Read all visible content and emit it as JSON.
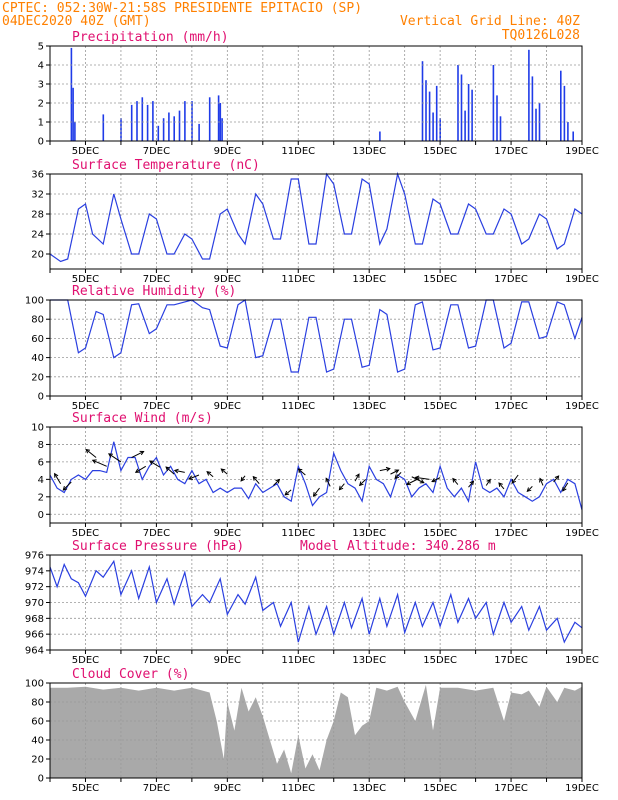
{
  "header": {
    "line1_left": "CPTEC:   052:30W-21:58S  PRESIDENTE EPITACIO (SP)",
    "line2_left": "04DEC2020 40Z (GMT)",
    "line2_right": "Vertical Grid Line: 40Z",
    "line3_right": "TQ0126L028",
    "model_altitude": "Model Altitude: 340.286 m"
  },
  "x_axis": {
    "start_day": 4,
    "end_day": 19,
    "tick_labels": [
      "5DEC",
      "7DEC",
      "9DEC",
      "11DEC",
      "13DEC",
      "15DEC",
      "17DEC",
      "19DEC"
    ]
  },
  "colors": {
    "line": "#2a3fe0",
    "bar": "#1f3be8",
    "cloud": "#a9a9a9",
    "grid": "#999999"
  },
  "chart_data": [
    {
      "id": "precip",
      "type": "bar",
      "title": "Precipitation (mm/h)",
      "ylim": [
        0,
        5
      ],
      "yticks": [
        0,
        1,
        2,
        3,
        4,
        5
      ],
      "x": [
        4.6,
        4.65,
        4.7,
        5.5,
        6.0,
        6.3,
        6.45,
        6.6,
        6.75,
        6.9,
        7.05,
        7.2,
        7.35,
        7.5,
        7.65,
        7.8,
        8.0,
        8.2,
        8.5,
        8.75,
        8.8,
        8.85,
        13.3,
        14.5,
        14.6,
        14.7,
        14.8,
        14.9,
        15.0,
        15.5,
        15.6,
        15.7,
        15.8,
        15.9,
        16.5,
        16.6,
        16.7,
        17.5,
        17.6,
        17.7,
        17.8,
        18.4,
        18.5,
        18.6,
        18.75
      ],
      "values": [
        4.9,
        2.8,
        1.0,
        1.4,
        1.2,
        1.9,
        2.1,
        2.3,
        1.9,
        2.1,
        0.8,
        1.2,
        1.5,
        1.3,
        1.6,
        2.1,
        2.1,
        0.9,
        2.3,
        2.4,
        2.0,
        1.2,
        0.5,
        4.2,
        3.2,
        2.6,
        1.5,
        2.9,
        1.2,
        4.0,
        3.5,
        1.6,
        3.0,
        2.7,
        4.0,
        2.4,
        1.3,
        4.8,
        3.4,
        1.7,
        2.0,
        3.7,
        2.9,
        1.0,
        0.5
      ]
    },
    {
      "id": "temp",
      "type": "line",
      "title": "Surface Temperature (nC)",
      "ylim": [
        17,
        36
      ],
      "yticks": [
        20,
        24,
        28,
        32,
        36
      ],
      "x": [
        4.0,
        4.3,
        4.5,
        4.8,
        5.0,
        5.2,
        5.5,
        5.8,
        6.0,
        6.3,
        6.5,
        6.8,
        7.0,
        7.3,
        7.5,
        7.8,
        8.0,
        8.3,
        8.5,
        8.8,
        9.0,
        9.3,
        9.5,
        9.8,
        10.0,
        10.3,
        10.5,
        10.8,
        11.0,
        11.3,
        11.5,
        11.8,
        12.0,
        12.3,
        12.5,
        12.8,
        13.0,
        13.3,
        13.5,
        13.8,
        14.0,
        14.3,
        14.5,
        14.8,
        15.0,
        15.3,
        15.5,
        15.8,
        16.0,
        16.3,
        16.5,
        16.8,
        17.0,
        17.3,
        17.5,
        17.8,
        18.0,
        18.3,
        18.5,
        18.8,
        19.0
      ],
      "values": [
        20,
        18.5,
        19,
        29,
        30,
        24,
        22,
        32,
        27,
        20,
        20,
        28,
        27,
        20,
        20,
        24,
        23,
        19,
        19,
        28,
        29,
        24,
        22,
        32,
        30,
        23,
        23,
        35,
        35,
        22,
        22,
        36,
        34,
        24,
        24,
        35,
        34,
        22,
        25,
        36,
        32,
        22,
        22,
        31,
        30,
        24,
        24,
        30,
        29,
        24,
        24,
        29,
        28,
        22,
        23,
        28,
        27,
        21,
        22,
        29,
        28
      ]
    },
    {
      "id": "rh",
      "type": "line",
      "title": "Relative Humidity (%)",
      "ylim": [
        0,
        100
      ],
      "yticks": [
        0,
        20,
        40,
        60,
        80,
        100
      ],
      "x": [
        4.0,
        4.3,
        4.5,
        4.8,
        5.0,
        5.3,
        5.5,
        5.8,
        6.0,
        6.3,
        6.5,
        6.8,
        7.0,
        7.3,
        7.5,
        7.8,
        8.0,
        8.3,
        8.5,
        8.8,
        9.0,
        9.3,
        9.5,
        9.8,
        10.0,
        10.3,
        10.5,
        10.8,
        11.0,
        11.3,
        11.5,
        11.8,
        12.0,
        12.3,
        12.5,
        12.8,
        13.0,
        13.3,
        13.5,
        13.8,
        14.0,
        14.3,
        14.5,
        14.8,
        15.0,
        15.3,
        15.5,
        15.8,
        16.0,
        16.3,
        16.5,
        16.8,
        17.0,
        17.3,
        17.5,
        17.8,
        18.0,
        18.3,
        18.5,
        18.8,
        19.0
      ],
      "values": [
        100,
        100,
        100,
        45,
        50,
        88,
        85,
        40,
        45,
        95,
        96,
        65,
        70,
        95,
        95,
        98,
        100,
        92,
        90,
        52,
        50,
        95,
        100,
        40,
        42,
        80,
        80,
        25,
        25,
        82,
        82,
        25,
        28,
        80,
        80,
        30,
        32,
        90,
        85,
        25,
        28,
        95,
        98,
        48,
        50,
        95,
        95,
        50,
        52,
        100,
        100,
        50,
        55,
        98,
        98,
        60,
        62,
        98,
        95,
        60,
        82
      ]
    },
    {
      "id": "wind",
      "type": "line",
      "title": "Surface Wind (m/s)",
      "ylim": [
        -1,
        10
      ],
      "yticks": [
        0,
        2,
        4,
        6,
        8,
        10
      ],
      "x": [
        4.0,
        4.2,
        4.4,
        4.6,
        4.8,
        5.0,
        5.2,
        5.4,
        5.6,
        5.8,
        6.0,
        6.2,
        6.4,
        6.6,
        6.8,
        7.0,
        7.2,
        7.4,
        7.6,
        7.8,
        8.0,
        8.2,
        8.4,
        8.6,
        8.8,
        9.0,
        9.2,
        9.4,
        9.6,
        9.8,
        10.0,
        10.2,
        10.4,
        10.6,
        10.8,
        11.0,
        11.2,
        11.4,
        11.6,
        11.8,
        12.0,
        12.2,
        12.4,
        12.6,
        12.8,
        13.0,
        13.2,
        13.4,
        13.6,
        13.8,
        14.0,
        14.2,
        14.4,
        14.6,
        14.8,
        15.0,
        15.2,
        15.4,
        15.6,
        15.8,
        16.0,
        16.2,
        16.4,
        16.6,
        16.8,
        17.0,
        17.2,
        17.4,
        17.6,
        17.8,
        18.0,
        18.2,
        18.4,
        18.6,
        18.8,
        19.0
      ],
      "values": [
        4.5,
        3.0,
        2.5,
        4.0,
        4.5,
        4.0,
        5.0,
        5.0,
        4.8,
        8.3,
        5.0,
        6.5,
        6.5,
        4.0,
        5.5,
        6.5,
        4.5,
        5.5,
        4.0,
        3.5,
        5.0,
        3.5,
        4.0,
        2.5,
        3.0,
        2.5,
        3.0,
        3.0,
        1.8,
        3.5,
        2.5,
        3.0,
        3.5,
        2.0,
        1.5,
        5.5,
        3.5,
        1.0,
        2.0,
        2.5,
        7.0,
        5.0,
        3.5,
        3.0,
        1.5,
        5.5,
        4.0,
        3.5,
        2.0,
        4.5,
        4.0,
        2.0,
        3.0,
        3.5,
        2.5,
        5.5,
        3.0,
        2.0,
        3.0,
        1.5,
        6.0,
        3.0,
        2.5,
        3.0,
        2.0,
        4.0,
        2.5,
        2.0,
        1.5,
        2.0,
        3.5,
        4.0,
        2.5,
        4.0,
        3.5,
        0.5
      ],
      "arrows": [
        {
          "x": 4.3,
          "y": 3.5,
          "dx": -6,
          "dy": -10
        },
        {
          "x": 4.6,
          "y": 3.7,
          "dx": -8,
          "dy": 8
        },
        {
          "x": 5.3,
          "y": 6.5,
          "dx": -10,
          "dy": -8
        },
        {
          "x": 5.6,
          "y": 5.5,
          "dx": -14,
          "dy": -6
        },
        {
          "x": 6.0,
          "y": 6.0,
          "dx": -12,
          "dy": -8
        },
        {
          "x": 6.3,
          "y": 6.5,
          "dx": 12,
          "dy": -6
        },
        {
          "x": 6.7,
          "y": 5.5,
          "dx": -10,
          "dy": 6
        },
        {
          "x": 7.1,
          "y": 5.4,
          "dx": -10,
          "dy": -6
        },
        {
          "x": 7.5,
          "y": 4.6,
          "dx": -8,
          "dy": -7
        },
        {
          "x": 7.8,
          "y": 4.8,
          "dx": -10,
          "dy": -2
        },
        {
          "x": 8.2,
          "y": 4.5,
          "dx": -10,
          "dy": 4
        },
        {
          "x": 8.6,
          "y": 4.3,
          "dx": -6,
          "dy": -5
        },
        {
          "x": 9.0,
          "y": 4.6,
          "dx": -6,
          "dy": -5
        },
        {
          "x": 9.5,
          "y": 4.4,
          "dx": -4,
          "dy": 5
        },
        {
          "x": 9.9,
          "y": 3.5,
          "dx": -6,
          "dy": -7
        },
        {
          "x": 10.3,
          "y": 3.3,
          "dx": 6,
          "dy": -6
        },
        {
          "x": 10.8,
          "y": 2.8,
          "dx": -6,
          "dy": 5
        },
        {
          "x": 11.2,
          "y": 4.5,
          "dx": -7,
          "dy": -6
        },
        {
          "x": 11.6,
          "y": 3.0,
          "dx": -6,
          "dy": 8
        },
        {
          "x": 11.9,
          "y": 3.2,
          "dx": -4,
          "dy": -8
        },
        {
          "x": 12.3,
          "y": 3.5,
          "dx": -5,
          "dy": 6
        },
        {
          "x": 12.6,
          "y": 3.8,
          "dx": 4,
          "dy": -7
        },
        {
          "x": 12.9,
          "y": 4.0,
          "dx": -6,
          "dy": 6
        },
        {
          "x": 13.3,
          "y": 5.0,
          "dx": 10,
          "dy": -2
        },
        {
          "x": 13.6,
          "y": 4.6,
          "dx": 8,
          "dy": -4
        },
        {
          "x": 13.9,
          "y": 4.8,
          "dx": -6,
          "dy": 6
        },
        {
          "x": 14.2,
          "y": 4.3,
          "dx": 12,
          "dy": 6
        },
        {
          "x": 14.4,
          "y": 4.1,
          "dx": -12,
          "dy": 6
        },
        {
          "x": 14.7,
          "y": 4.0,
          "dx": -14,
          "dy": -2
        },
        {
          "x": 15.0,
          "y": 4.2,
          "dx": -8,
          "dy": 4
        },
        {
          "x": 15.5,
          "y": 3.4,
          "dx": -5,
          "dy": -6
        },
        {
          "x": 15.8,
          "y": 3.1,
          "dx": 5,
          "dy": -6
        },
        {
          "x": 16.3,
          "y": 3.3,
          "dx": 4,
          "dy": -6
        },
        {
          "x": 16.8,
          "y": 2.9,
          "dx": -5,
          "dy": -6
        },
        {
          "x": 17.2,
          "y": 4.5,
          "dx": -6,
          "dy": 8
        },
        {
          "x": 17.6,
          "y": 3.2,
          "dx": -5,
          "dy": 5
        },
        {
          "x": 17.9,
          "y": 3.3,
          "dx": -3,
          "dy": -7
        },
        {
          "x": 18.2,
          "y": 3.7,
          "dx": 5,
          "dy": -6
        },
        {
          "x": 18.6,
          "y": 3.6,
          "dx": -5,
          "dy": 8
        }
      ]
    },
    {
      "id": "pressure",
      "type": "line",
      "title": "Surface Pressure (hPa)",
      "ylim": [
        964,
        976
      ],
      "yticks": [
        964,
        966,
        968,
        970,
        972,
        974,
        976
      ],
      "x": [
        4.0,
        4.2,
        4.4,
        4.6,
        4.8,
        5.0,
        5.3,
        5.5,
        5.8,
        6.0,
        6.3,
        6.5,
        6.8,
        7.0,
        7.3,
        7.5,
        7.8,
        8.0,
        8.3,
        8.5,
        8.8,
        9.0,
        9.3,
        9.5,
        9.8,
        10.0,
        10.3,
        10.5,
        10.8,
        11.0,
        11.3,
        11.5,
        11.8,
        12.0,
        12.3,
        12.5,
        12.8,
        13.0,
        13.3,
        13.5,
        13.8,
        14.0,
        14.3,
        14.5,
        14.8,
        15.0,
        15.3,
        15.5,
        15.8,
        16.0,
        16.3,
        16.5,
        16.8,
        17.0,
        17.3,
        17.5,
        17.8,
        18.0,
        18.3,
        18.5,
        18.8,
        19.0
      ],
      "values": [
        974.5,
        972,
        974.8,
        973,
        972.5,
        970.8,
        974.0,
        973.2,
        975.2,
        971.0,
        974.0,
        970.5,
        974.5,
        970.0,
        973.0,
        969.8,
        973.8,
        969.5,
        971.0,
        970.0,
        973.0,
        968.5,
        971.0,
        969.8,
        973.2,
        969.0,
        970.0,
        967.0,
        970.0,
        965.0,
        969.5,
        966.0,
        969.5,
        966.0,
        970.0,
        966.8,
        970.5,
        966.0,
        970.5,
        967.0,
        971.0,
        966.2,
        970.0,
        967.0,
        970.0,
        967.0,
        971.0,
        967.5,
        970.5,
        968.0,
        970.0,
        966.0,
        970.0,
        967.5,
        969.5,
        966.5,
        969.5,
        966.5,
        968.0,
        965.0,
        967.5,
        966.8
      ]
    },
    {
      "id": "cloud",
      "type": "area",
      "title": "Cloud Cover (%)",
      "ylim": [
        0,
        100
      ],
      "yticks": [
        0,
        20,
        40,
        60,
        80,
        100
      ],
      "x": [
        4.0,
        4.5,
        5.0,
        5.5,
        6.0,
        6.5,
        7.0,
        7.5,
        8.0,
        8.5,
        8.7,
        8.9,
        9.0,
        9.2,
        9.4,
        9.6,
        9.8,
        10.0,
        10.2,
        10.4,
        10.6,
        10.8,
        11.0,
        11.2,
        11.4,
        11.6,
        11.8,
        12.0,
        12.2,
        12.4,
        12.6,
        12.8,
        13.0,
        13.2,
        13.5,
        13.8,
        14.0,
        14.3,
        14.6,
        14.8,
        15.0,
        15.5,
        16.0,
        16.5,
        16.8,
        17.0,
        17.3,
        17.5,
        17.8,
        18.0,
        18.3,
        18.5,
        18.8,
        19.0
      ],
      "values": [
        95,
        95,
        96,
        93,
        95,
        92,
        95,
        92,
        95,
        90,
        60,
        20,
        80,
        50,
        95,
        70,
        85,
        65,
        40,
        15,
        30,
        5,
        45,
        10,
        25,
        8,
        40,
        60,
        90,
        85,
        45,
        55,
        60,
        95,
        92,
        96,
        80,
        60,
        98,
        50,
        95,
        95,
        92,
        95,
        60,
        90,
        88,
        92,
        75,
        96,
        80,
        95,
        92,
        96
      ]
    }
  ]
}
